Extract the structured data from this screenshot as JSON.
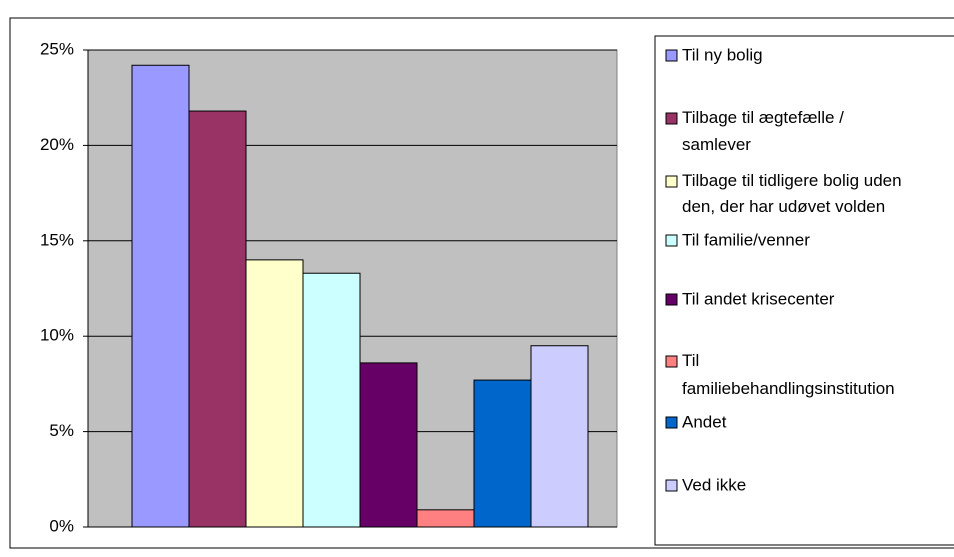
{
  "chart_data": {
    "type": "bar",
    "series": [
      {
        "name": "Til ny bolig",
        "color": "#9999ff",
        "values": [
          24.2
        ]
      },
      {
        "name": "Tilbage til ægtefælle / samlever",
        "color": "#993366",
        "values": [
          21.8
        ]
      },
      {
        "name": "Tilbage til tidligere bolig uden den, der har udøvet volden",
        "color": "#ffffcc",
        "values": [
          14.0
        ]
      },
      {
        "name": "Til familie/venner",
        "color": "#ccffff",
        "values": [
          13.3
        ]
      },
      {
        "name": "Til andet krisecenter",
        "color": "#660066",
        "values": [
          8.6
        ]
      },
      {
        "name": "Til familiebehandlingsinstitution",
        "color": "#ff8080",
        "values": [
          0.9
        ]
      },
      {
        "name": "Andet",
        "color": "#0066cc",
        "values": [
          7.7
        ]
      },
      {
        "name": "Ved ikke",
        "color": "#ccccff",
        "values": [
          9.5
        ]
      }
    ],
    "ylim": [
      0,
      25
    ],
    "yticks": [
      {
        "value": 0,
        "label": "0%"
      },
      {
        "value": 5,
        "label": "5%"
      },
      {
        "value": 10,
        "label": "10%"
      },
      {
        "value": 15,
        "label": "15%"
      },
      {
        "value": 20,
        "label": "20%"
      },
      {
        "value": 25,
        "label": "25%"
      }
    ],
    "grid": true,
    "plot_background": "#c0c0c0"
  }
}
